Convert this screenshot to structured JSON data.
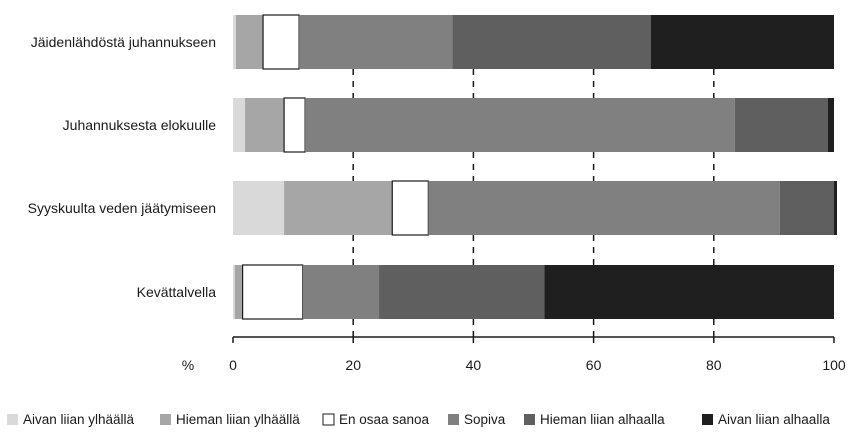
{
  "chart_data": {
    "type": "bar",
    "orientation": "horizontal",
    "stacked": true,
    "normalized": true,
    "categories": [
      "Jäidenlähdöstä juhannukseen",
      "Juhannuksesta elokuulle",
      "Syyskuulta veden jäätymiseen",
      "Kevättalvella"
    ],
    "series": [
      {
        "name": "Aivan liian ylhäällä",
        "color": "#d9d9d9",
        "values": [
          0.5,
          2,
          8.5,
          0.3
        ]
      },
      {
        "name": "Hieman liian ylhäällä",
        "color": "#a6a6a6",
        "values": [
          4.5,
          6.5,
          18,
          1.3
        ]
      },
      {
        "name": "En osaa sanoa",
        "color": "#ffffff",
        "values": [
          6,
          3.5,
          6,
          10
        ]
      },
      {
        "name": "Sopiva",
        "color": "#808080",
        "values": [
          25.5,
          71.5,
          58.5,
          12.7
        ]
      },
      {
        "name": "Hieman liian alhaalla",
        "color": "#5f5f5f",
        "values": [
          33,
          15.5,
          9,
          27.5
        ]
      },
      {
        "name": "Aivan liian alhaalla",
        "color": "#1f1f1f",
        "values": [
          30.5,
          1,
          0.5,
          48.2
        ]
      }
    ],
    "xlabel": "%",
    "ylabel": "",
    "xlim": [
      0,
      100
    ],
    "xticks": [
      "0",
      "20",
      "40",
      "60",
      "80",
      "100"
    ],
    "grid": "dashed vertical",
    "legend_position": "bottom"
  }
}
